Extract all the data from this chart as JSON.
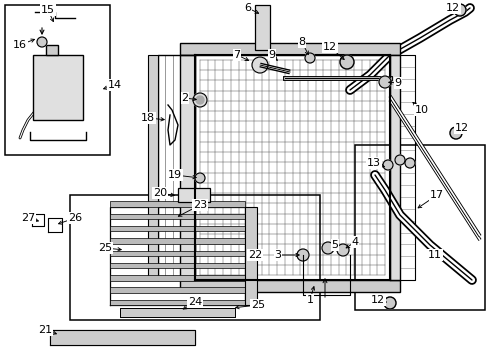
{
  "fig_width": 4.89,
  "fig_height": 3.6,
  "dpi": 100,
  "background_color": "#ffffff",
  "image_data": ""
}
